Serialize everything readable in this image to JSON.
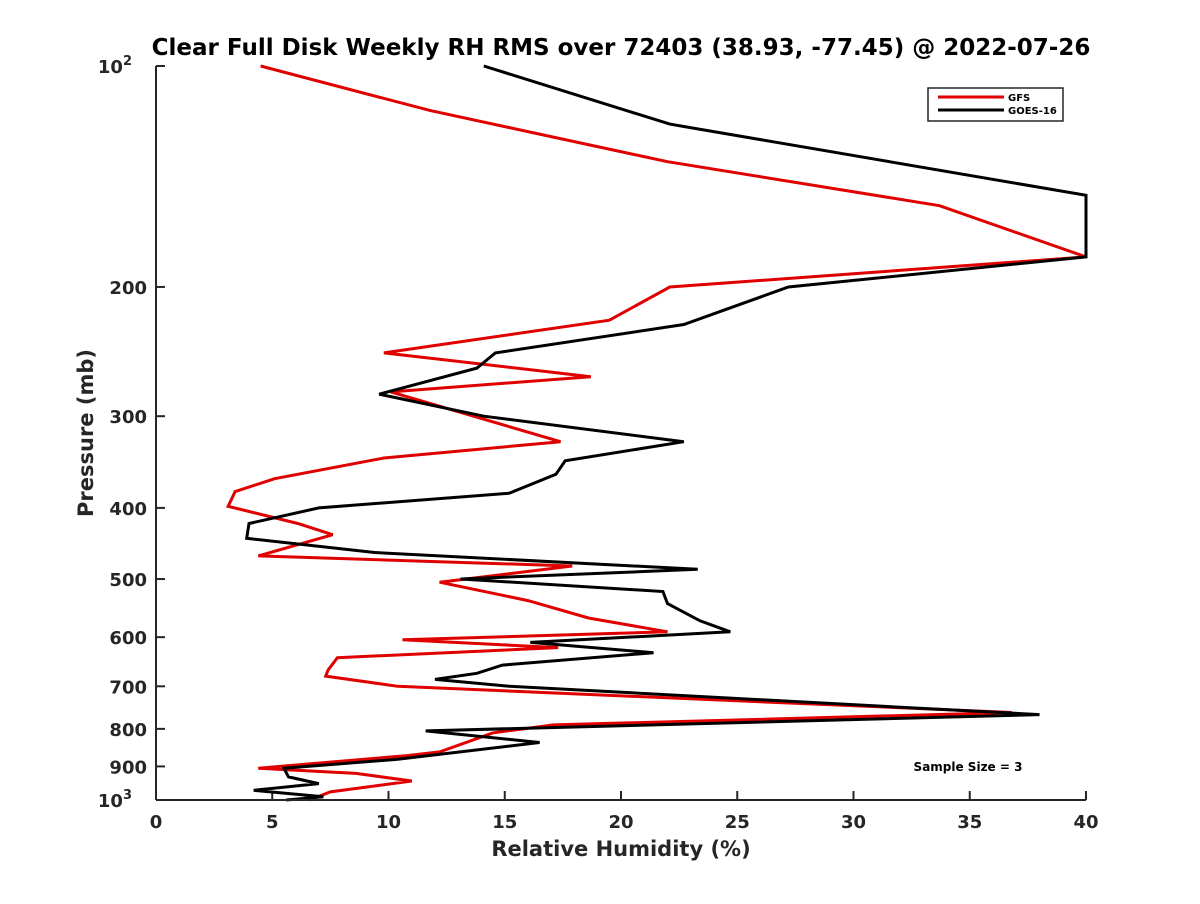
{
  "chart_data": {
    "type": "line",
    "title": "Clear Full Disk Weekly RH RMS over 72403 (38.93, -77.45) @ 2022-07-26",
    "xlabel": "Relative Humidity (%)",
    "ylabel": "Pressure (mb)",
    "xlim": [
      0,
      40
    ],
    "ylim": [
      100,
      1000
    ],
    "y_scale": "log",
    "y_reversed": true,
    "x_ticks": [
      "0",
      "5",
      "10",
      "15",
      "20",
      "25",
      "30",
      "35",
      "40"
    ],
    "y_ticks": [
      {
        "value": 100,
        "base": "10",
        "exp": "2"
      },
      {
        "value": 200,
        "label": "200"
      },
      {
        "value": 300,
        "label": "300"
      },
      {
        "value": 400,
        "label": "400"
      },
      {
        "value": 500,
        "label": "500"
      },
      {
        "value": 600,
        "label": "600"
      },
      {
        "value": 700,
        "label": "700"
      },
      {
        "value": 800,
        "label": "800"
      },
      {
        "value": 900,
        "label": "900"
      },
      {
        "value": 1000,
        "base": "10",
        "exp": "3"
      }
    ],
    "grid": false,
    "legend_position": "top-right",
    "annotation": "Sample Size = 3",
    "series": [
      {
        "name": "GFS",
        "color": "#e00000",
        "points": [
          [
            4.5,
            100
          ],
          [
            11.8,
            115
          ],
          [
            22.0,
            135
          ],
          [
            33.7,
            155
          ],
          [
            40.0,
            182
          ],
          [
            22.1,
            200
          ],
          [
            19.5,
            222
          ],
          [
            9.8,
            246
          ],
          [
            18.7,
            265
          ],
          [
            10.1,
            278
          ],
          [
            17.4,
            325
          ],
          [
            9.8,
            342
          ],
          [
            5.1,
            365
          ],
          [
            3.4,
            380
          ],
          [
            3.1,
            398
          ],
          [
            6.1,
            420
          ],
          [
            7.6,
            435
          ],
          [
            4.4,
            465
          ],
          [
            17.9,
            480
          ],
          [
            12.2,
            505
          ],
          [
            16.0,
            535
          ],
          [
            18.6,
            565
          ],
          [
            22.0,
            590
          ],
          [
            10.6,
            605
          ],
          [
            17.3,
            620
          ],
          [
            7.8,
            640
          ],
          [
            7.4,
            665
          ],
          [
            7.3,
            678
          ],
          [
            10.4,
            700
          ],
          [
            36.8,
            760
          ],
          [
            17.1,
            790
          ],
          [
            14.5,
            810
          ],
          [
            12.2,
            860
          ],
          [
            10.8,
            870
          ],
          [
            4.4,
            905
          ],
          [
            8.6,
            920
          ],
          [
            11.0,
            942
          ],
          [
            7.5,
            975
          ],
          [
            6.6,
            1000
          ]
        ]
      },
      {
        "name": "GOES-16",
        "color": "#000000",
        "points": [
          [
            14.1,
            100
          ],
          [
            22.1,
            120
          ],
          [
            40.0,
            150
          ],
          [
            40.0,
            182
          ],
          [
            27.2,
            200
          ],
          [
            22.7,
            225
          ],
          [
            14.6,
            246
          ],
          [
            13.8,
            258
          ],
          [
            9.6,
            280
          ],
          [
            14.1,
            300
          ],
          [
            22.7,
            325
          ],
          [
            17.6,
            345
          ],
          [
            17.2,
            360
          ],
          [
            15.2,
            382
          ],
          [
            7.0,
            400
          ],
          [
            4.0,
            420
          ],
          [
            3.9,
            440
          ],
          [
            9.4,
            460
          ],
          [
            23.3,
            485
          ],
          [
            13.1,
            500
          ],
          [
            21.8,
            520
          ],
          [
            22.0,
            540
          ],
          [
            23.4,
            570
          ],
          [
            24.7,
            590
          ],
          [
            16.1,
            610
          ],
          [
            21.4,
            630
          ],
          [
            14.9,
            655
          ],
          [
            13.8,
            672
          ],
          [
            12.0,
            685
          ],
          [
            15.2,
            700
          ],
          [
            38.0,
            765
          ],
          [
            11.6,
            805
          ],
          [
            16.5,
            835
          ],
          [
            10.4,
            880
          ],
          [
            5.5,
            905
          ],
          [
            5.7,
            930
          ],
          [
            7.0,
            950
          ],
          [
            4.2,
            970
          ],
          [
            7.2,
            990
          ],
          [
            5.6,
            1000
          ]
        ]
      }
    ]
  }
}
